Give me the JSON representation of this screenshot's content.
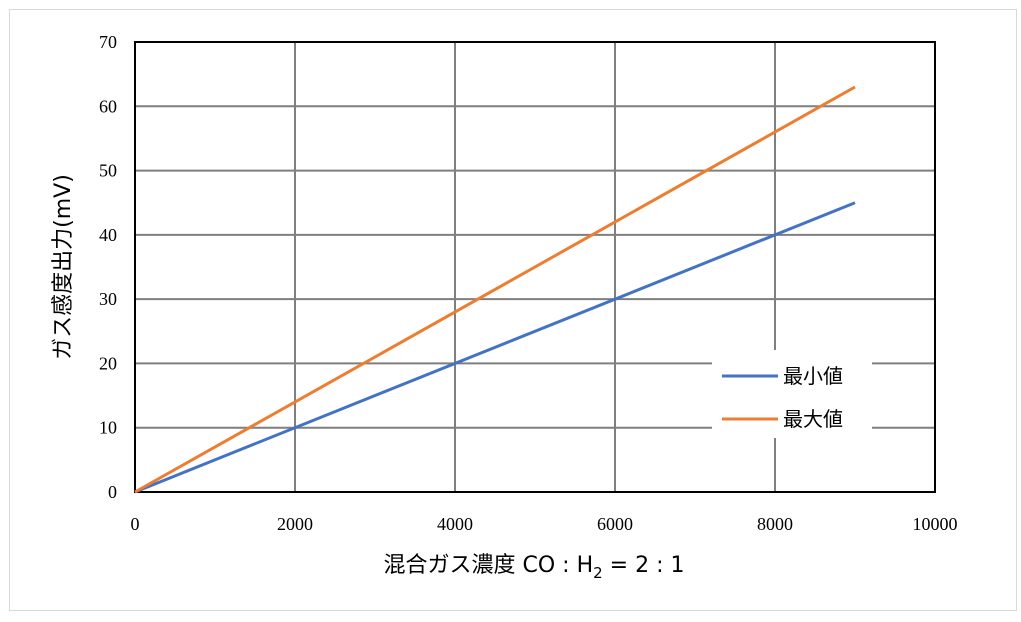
{
  "chart_data": {
    "type": "line",
    "x": [
      0,
      9000
    ],
    "series": [
      {
        "name": "最小値",
        "color": "#4472C4",
        "values": [
          0,
          45
        ]
      },
      {
        "name": "最大値",
        "color": "#ED7D31",
        "values": [
          0,
          63
        ]
      }
    ],
    "xlim": [
      0,
      10000
    ],
    "ylim": [
      0,
      70
    ],
    "xticks": [
      "0",
      "2000",
      "4000",
      "6000",
      "8000",
      "10000"
    ],
    "yticks": [
      "0",
      "10",
      "20",
      "30",
      "40",
      "50",
      "60",
      "70"
    ],
    "xlabel": {
      "main": "混合ガス濃度 CO : H",
      "sub": "2",
      "tail": " = 2 : 1"
    },
    "ylabel": "ガス感度出力(mV)",
    "grid": true,
    "legend_position": "lower-right"
  }
}
